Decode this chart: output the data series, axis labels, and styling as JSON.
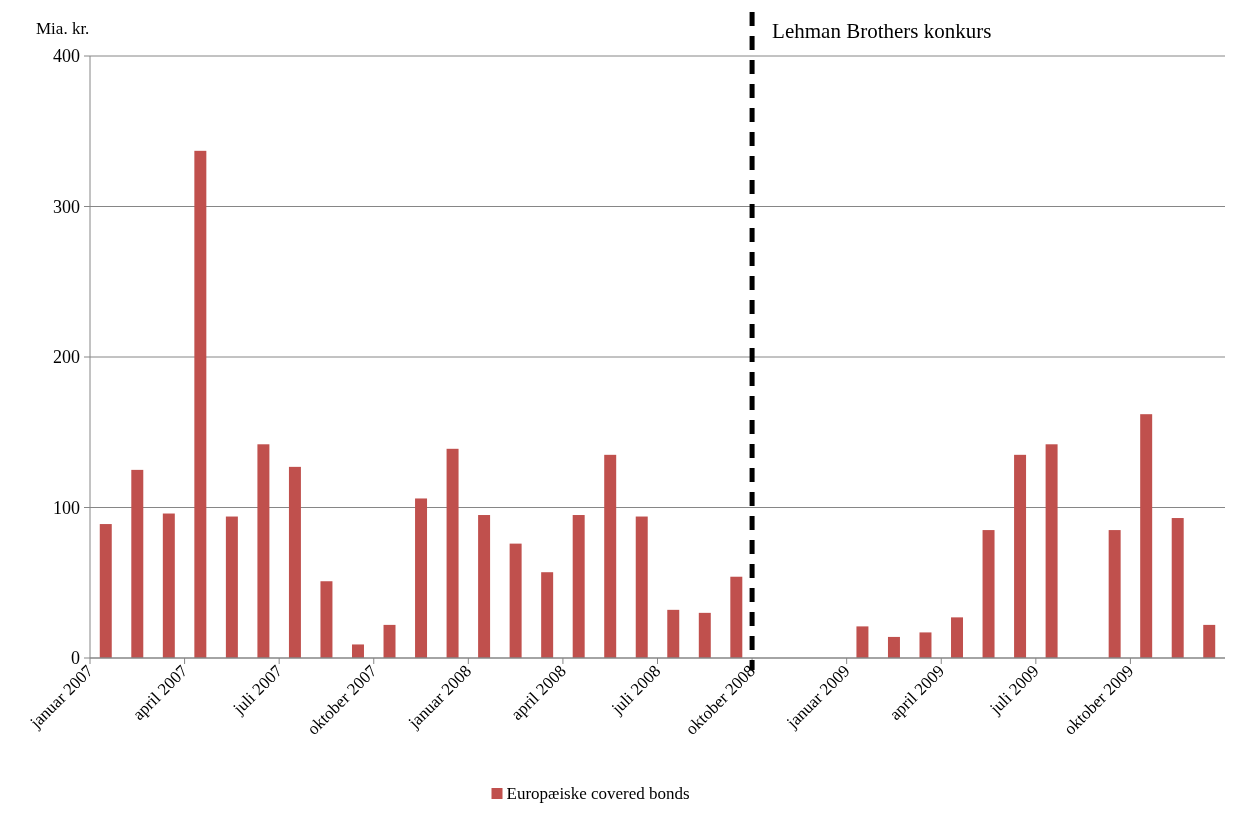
{
  "chart_data": {
    "type": "bar",
    "ylabel": "Mia. kr.",
    "categories": [
      "januar 2007",
      null,
      null,
      "april 2007",
      null,
      null,
      "juli 2007",
      null,
      null,
      "oktober 2007",
      null,
      null,
      "januar 2008",
      null,
      null,
      "april 2008",
      null,
      null,
      "juli 2008",
      null,
      null,
      "oktober 2008",
      null,
      null,
      "januar 2009",
      null,
      null,
      "april 2009",
      null,
      null,
      "juli 2009",
      null,
      null,
      "oktober 2009",
      null,
      null
    ],
    "series": [
      {
        "name": "Europæiske covered bonds",
        "color": "#c0504d",
        "values": [
          89,
          125,
          96,
          337,
          94,
          142,
          127,
          51,
          9,
          22,
          106,
          139,
          95,
          76,
          57,
          95,
          135,
          94,
          32,
          30,
          54,
          null,
          null,
          null,
          21,
          14,
          17,
          27,
          85,
          135,
          142,
          null,
          85,
          162,
          93,
          22
        ]
      }
    ],
    "ylim": [
      0,
      400
    ],
    "yticks": [
      0,
      100,
      200,
      300,
      400
    ],
    "grid": "y",
    "legend": "bottom",
    "ref_lines": [
      {
        "axis": "x",
        "value": "oktober 2008",
        "label": "Lehman Brothers konkurs",
        "color": "#000000",
        "line_style": "dashed"
      }
    ]
  }
}
